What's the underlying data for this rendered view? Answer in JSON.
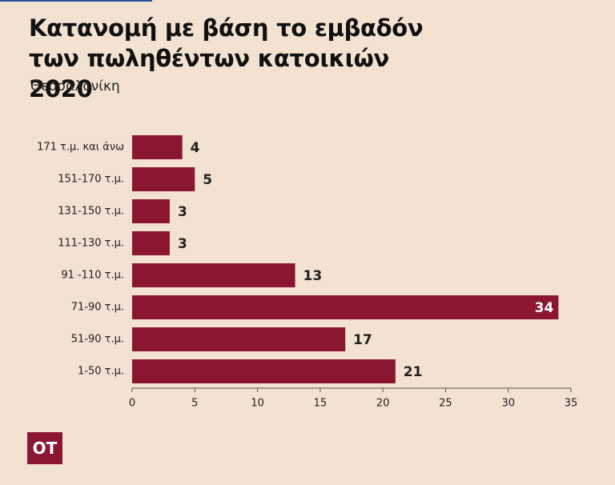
{
  "chart_data": {
    "type": "hbar",
    "title": "Κατανομή με βάση το εμβαδόν των πωληθέντων κατοικιών 2020",
    "subtitle": "Θεσσαλονίκη",
    "logo": "OT",
    "categories": [
      "171 τ.μ. και άνω",
      "151-170 τ.μ.",
      "131-150 τ.μ.",
      "111-130 τ.μ.",
      "91 -110 τ.μ.",
      "71-90 τ.μ.",
      "51-90 τ.μ.",
      "1-50 τ.μ."
    ],
    "values": [
      4,
      5,
      3,
      3,
      13,
      34,
      17,
      21
    ],
    "color": "#8a1631",
    "xlim": [
      0,
      35
    ],
    "xticks": [
      0,
      5,
      10,
      15,
      20,
      25,
      30,
      35
    ],
    "grid": false
  }
}
